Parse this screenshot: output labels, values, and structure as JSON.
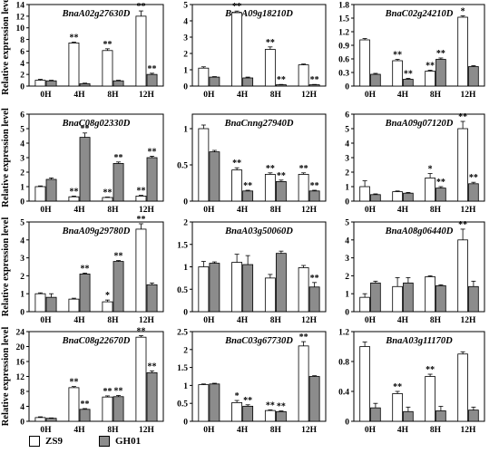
{
  "figure": {
    "ylabel": "Relative expression level",
    "colors": {
      "zs9": "#ffffff",
      "gh01": "#8c8c8c",
      "stroke": "#000000"
    }
  },
  "legend": {
    "items": [
      {
        "name": "ZS9",
        "color": "#ffffff"
      },
      {
        "name": "GH01",
        "color": "#8c8c8c"
      }
    ]
  },
  "chart_data": [
    {
      "type": "bar",
      "title": "BnaA02g27630D",
      "categories": [
        "0H",
        "4H",
        "8H",
        "12H"
      ],
      "ylim": [
        0,
        14
      ],
      "yticks": [
        0,
        2,
        4,
        6,
        8,
        10,
        12,
        14
      ],
      "series": [
        {
          "name": "ZS9",
          "values": [
            1.0,
            7.4,
            6.1,
            12.0
          ],
          "errors": [
            0.15,
            0.15,
            0.3,
            0.9
          ],
          "sig": [
            "",
            "**",
            "**",
            "**"
          ]
        },
        {
          "name": "GH01",
          "values": [
            0.9,
            0.4,
            0.9,
            2.0
          ],
          "errors": [
            0.1,
            0.1,
            0.1,
            0.2
          ],
          "sig": [
            "",
            "",
            "",
            "**"
          ]
        }
      ]
    },
    {
      "type": "bar",
      "title": "BnaA09g18210D",
      "categories": [
        "0H",
        "4H",
        "8H",
        "12H"
      ],
      "ylim": [
        0,
        5
      ],
      "yticks": [
        0,
        1,
        2,
        3,
        4,
        5
      ],
      "series": [
        {
          "name": "ZS9",
          "values": [
            1.1,
            4.5,
            2.25,
            1.3
          ],
          "errors": [
            0.08,
            0.1,
            0.15,
            0.05
          ],
          "sig": [
            "",
            "**",
            "**",
            ""
          ]
        },
        {
          "name": "GH01",
          "values": [
            0.55,
            0.5,
            0.08,
            0.08
          ],
          "errors": [
            0.03,
            0.05,
            0.02,
            0.02
          ],
          "sig": [
            "",
            "",
            "**",
            "**"
          ]
        }
      ]
    },
    {
      "type": "bar",
      "title": "BnaC02g24210D",
      "categories": [
        "0H",
        "4H",
        "8H",
        "12H"
      ],
      "ylim": [
        0,
        1.8
      ],
      "yticks": [
        0,
        0.3,
        0.6,
        0.9,
        1.2,
        1.5,
        1.8
      ],
      "series": [
        {
          "name": "ZS9",
          "values": [
            1.02,
            0.56,
            0.33,
            1.52
          ],
          "errors": [
            0.03,
            0.03,
            0.02,
            0.03
          ],
          "sig": [
            "",
            "**",
            "**",
            "*"
          ]
        },
        {
          "name": "GH01",
          "values": [
            0.26,
            0.15,
            0.59,
            0.43
          ],
          "errors": [
            0.02,
            0.02,
            0.03,
            0.02
          ],
          "sig": [
            "",
            "**",
            "**",
            ""
          ]
        }
      ]
    },
    {
      "type": "bar",
      "title": "BnaC08g02330D",
      "categories": [
        "0H",
        "4H",
        "8H",
        "12H"
      ],
      "ylim": [
        0,
        6
      ],
      "yticks": [
        0,
        1,
        2,
        3,
        4,
        5,
        6
      ],
      "series": [
        {
          "name": "ZS9",
          "values": [
            1.0,
            0.3,
            0.25,
            0.35
          ],
          "errors": [
            0.05,
            0.05,
            0.03,
            0.05
          ],
          "sig": [
            "",
            "**",
            "**",
            "**"
          ]
        },
        {
          "name": "GH01",
          "values": [
            1.5,
            4.4,
            2.6,
            3.0
          ],
          "errors": [
            0.1,
            0.3,
            0.1,
            0.1
          ],
          "sig": [
            "",
            "**",
            "**",
            "**"
          ]
        }
      ]
    },
    {
      "type": "bar",
      "title": "BnaCnng27940D",
      "categories": [
        "0H",
        "4H",
        "8H",
        "12H"
      ],
      "ylim": [
        0,
        1.2
      ],
      "yticks": [
        0,
        0.5,
        1
      ],
      "series": [
        {
          "name": "ZS9",
          "values": [
            1.0,
            0.43,
            0.37,
            0.37
          ],
          "errors": [
            0.05,
            0.03,
            0.02,
            0.02
          ],
          "sig": [
            "",
            "**",
            "**",
            "**"
          ]
        },
        {
          "name": "GH01",
          "values": [
            0.68,
            0.14,
            0.27,
            0.14
          ],
          "errors": [
            0.02,
            0.01,
            0.02,
            0.01
          ],
          "sig": [
            "",
            "**",
            "**",
            "**"
          ]
        }
      ]
    },
    {
      "type": "bar",
      "title": "BnaA09g07120D",
      "categories": [
        "0H",
        "4H",
        "8H",
        "12H"
      ],
      "ylim": [
        0,
        6
      ],
      "yticks": [
        0,
        1,
        2,
        3,
        4,
        5,
        6
      ],
      "series": [
        {
          "name": "ZS9",
          "values": [
            1.0,
            0.65,
            1.6,
            5.0
          ],
          "errors": [
            0.4,
            0.05,
            0.3,
            0.5
          ],
          "sig": [
            "",
            "",
            "*",
            "**"
          ]
        },
        {
          "name": "GH01",
          "values": [
            0.45,
            0.55,
            0.9,
            1.2
          ],
          "errors": [
            0.05,
            0.05,
            0.1,
            0.1
          ],
          "sig": [
            "",
            "",
            "**",
            "**"
          ]
        }
      ]
    },
    {
      "type": "bar",
      "title": "BnaA09g29780D",
      "categories": [
        "0H",
        "4H",
        "8H",
        "12H"
      ],
      "ylim": [
        0,
        5
      ],
      "yticks": [
        0,
        1,
        2,
        3,
        4,
        5
      ],
      "series": [
        {
          "name": "ZS9",
          "values": [
            1.0,
            0.7,
            0.55,
            4.6
          ],
          "errors": [
            0.05,
            0.05,
            0.1,
            0.3
          ],
          "sig": [
            "",
            "",
            "*",
            "**"
          ]
        },
        {
          "name": "GH01",
          "values": [
            0.8,
            2.1,
            2.8,
            1.5
          ],
          "errors": [
            0.2,
            0.05,
            0.05,
            0.1
          ],
          "sig": [
            "",
            "**",
            "**",
            ""
          ]
        }
      ]
    },
    {
      "type": "bar",
      "title": "BnaA03g50060D",
      "categories": [
        "0H",
        "4H",
        "8H",
        "12H"
      ],
      "ylim": [
        0,
        2
      ],
      "yticks": [
        0,
        0.5,
        1,
        1.5,
        2
      ],
      "series": [
        {
          "name": "ZS9",
          "values": [
            1.0,
            1.1,
            0.75,
            0.98
          ],
          "errors": [
            0.12,
            0.18,
            0.08,
            0.05
          ],
          "sig": [
            "",
            "",
            "",
            ""
          ]
        },
        {
          "name": "GH01",
          "values": [
            1.08,
            1.05,
            1.3,
            0.55
          ],
          "errors": [
            0.03,
            0.2,
            0.05,
            0.1
          ],
          "sig": [
            "",
            "",
            "",
            "**"
          ]
        }
      ]
    },
    {
      "type": "bar",
      "title": "BnaA08g06440D",
      "categories": [
        "0H",
        "4H",
        "8H",
        "12H"
      ],
      "ylim": [
        0,
        5
      ],
      "yticks": [
        0,
        1,
        2,
        3,
        4,
        5
      ],
      "series": [
        {
          "name": "ZS9",
          "values": [
            0.8,
            1.4,
            1.95,
            4.0
          ],
          "errors": [
            0.2,
            0.5,
            0.05,
            0.6
          ],
          "sig": [
            "",
            "",
            "",
            "**"
          ]
        },
        {
          "name": "GH01",
          "values": [
            1.6,
            1.6,
            1.45,
            1.4
          ],
          "errors": [
            0.1,
            0.3,
            0.05,
            0.3
          ],
          "sig": [
            "",
            "",
            "",
            ""
          ]
        }
      ]
    },
    {
      "type": "bar",
      "title": "BnaC08g22670D",
      "categories": [
        "0H",
        "4H",
        "8H",
        "12H"
      ],
      "ylim": [
        0,
        24
      ],
      "yticks": [
        0,
        4,
        8,
        12,
        16,
        20,
        24
      ],
      "series": [
        {
          "name": "ZS9",
          "values": [
            1.0,
            9.0,
            6.5,
            22.5
          ],
          "errors": [
            0.2,
            0.3,
            0.3,
            0.4
          ],
          "sig": [
            "",
            "**",
            "**",
            "**"
          ]
        },
        {
          "name": "GH01",
          "values": [
            0.8,
            3.2,
            6.6,
            13.0
          ],
          "errors": [
            0.1,
            0.2,
            0.3,
            0.5
          ],
          "sig": [
            "",
            "**",
            "**",
            "**"
          ]
        }
      ]
    },
    {
      "type": "bar",
      "title": "BnaC03g67730D",
      "categories": [
        "0H",
        "4H",
        "8H",
        "12H"
      ],
      "ylim": [
        0,
        2.5
      ],
      "yticks": [
        0,
        0.5,
        1,
        1.5,
        2,
        2.5
      ],
      "series": [
        {
          "name": "ZS9",
          "values": [
            1.02,
            0.52,
            0.3,
            2.1
          ],
          "errors": [
            0.02,
            0.06,
            0.02,
            0.12
          ],
          "sig": [
            "",
            "*",
            "**",
            "**"
          ]
        },
        {
          "name": "GH01",
          "values": [
            1.04,
            0.42,
            0.27,
            1.25
          ],
          "errors": [
            0.02,
            0.04,
            0.02,
            0.02
          ],
          "sig": [
            "",
            "**",
            "**",
            ""
          ]
        }
      ]
    },
    {
      "type": "bar",
      "title": "BnaA03g11170D",
      "categories": [
        "0H",
        "4H",
        "8H",
        "12H"
      ],
      "ylim": [
        0,
        1.2
      ],
      "yticks": [
        0,
        0.4,
        0.8,
        1.2
      ],
      "series": [
        {
          "name": "ZS9",
          "values": [
            1.0,
            0.37,
            0.6,
            0.9
          ],
          "errors": [
            0.06,
            0.03,
            0.03,
            0.03
          ],
          "sig": [
            "",
            "**",
            "**",
            ""
          ]
        },
        {
          "name": "GH01",
          "values": [
            0.18,
            0.13,
            0.14,
            0.15
          ],
          "errors": [
            0.06,
            0.06,
            0.06,
            0.04
          ],
          "sig": [
            "",
            "",
            "",
            ""
          ]
        }
      ]
    }
  ]
}
